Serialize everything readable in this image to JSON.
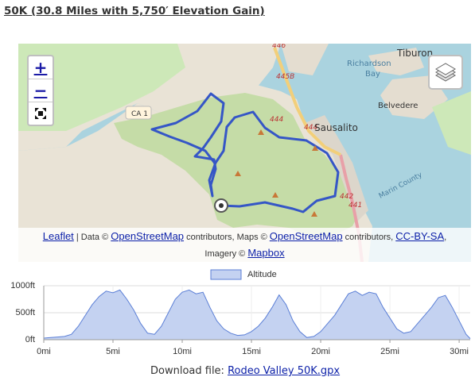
{
  "header": {
    "title": "50K (30.8 Miles with 5,750′ Elevation Gain)"
  },
  "map": {
    "controls": {
      "zoom_in": "+",
      "zoom_out": "−"
    },
    "labels": [
      "446",
      "445B",
      "444",
      "444",
      "Sausalito",
      "Richardson",
      "Bay",
      "Tiburon",
      "Belvedere",
      "Marin County",
      "CA 1",
      "442",
      "441"
    ],
    "attribution": [
      "Leaflet",
      " | Data © ",
      "OpenStreetMap",
      " contributors, Maps © ",
      "OpenStreetMap",
      " contributors, ",
      "CC-BY-SA",
      ",",
      "Imagery © ",
      "Mapbox"
    ]
  },
  "chart_data": {
    "type": "area",
    "x": [
      0,
      0.5,
      1,
      1.5,
      2,
      2.5,
      3,
      3.5,
      4,
      4.5,
      5,
      5.5,
      6,
      6.5,
      7,
      7.5,
      8,
      8.5,
      9,
      9.5,
      10,
      10.5,
      11,
      11.5,
      12,
      12.5,
      13,
      13.5,
      14,
      14.5,
      15,
      15.5,
      16,
      16.5,
      17,
      17.5,
      18,
      18.5,
      19,
      19.5,
      20,
      20.5,
      21,
      21.5,
      22,
      22.5,
      23,
      23.5,
      24,
      24.5,
      25,
      25.5,
      26,
      26.5,
      27,
      27.5,
      28,
      28.5,
      29,
      29.5,
      30,
      30.5,
      30.8
    ],
    "series": [
      {
        "name": "Altitude",
        "color": "#5b7fd6",
        "fill": "#c4d2f1",
        "values": [
          30,
          40,
          50,
          60,
          100,
          250,
          450,
          650,
          800,
          900,
          870,
          920,
          750,
          550,
          300,
          120,
          100,
          250,
          500,
          750,
          880,
          920,
          850,
          880,
          600,
          350,
          200,
          120,
          80,
          90,
          150,
          250,
          400,
          600,
          830,
          650,
          350,
          150,
          40,
          60,
          150,
          300,
          450,
          650,
          850,
          900,
          820,
          880,
          850,
          600,
          400,
          200,
          120,
          150,
          300,
          450,
          600,
          780,
          820,
          600,
          350,
          100,
          20
        ]
      }
    ],
    "xlim": [
      0,
      30.8
    ],
    "xticks": [
      {
        "value": 0,
        "label": "0mi"
      },
      {
        "value": 5,
        "label": "5mi"
      },
      {
        "value": 10,
        "label": "10mi"
      },
      {
        "value": 15,
        "label": "15mi"
      },
      {
        "value": 20,
        "label": "20mi"
      },
      {
        "value": 25,
        "label": "25mi"
      },
      {
        "value": 30,
        "label": "30mi"
      }
    ],
    "ylim": [
      0,
      1000
    ],
    "yticks": [
      {
        "value": 0,
        "label": "0ft"
      },
      {
        "value": 500,
        "label": "500ft"
      },
      {
        "value": 1000,
        "label": "1000ft"
      }
    ],
    "grid": true
  },
  "footer": {
    "download_label": "Download file: ",
    "download_link": "Rodeo Valley 50K.gpx"
  }
}
